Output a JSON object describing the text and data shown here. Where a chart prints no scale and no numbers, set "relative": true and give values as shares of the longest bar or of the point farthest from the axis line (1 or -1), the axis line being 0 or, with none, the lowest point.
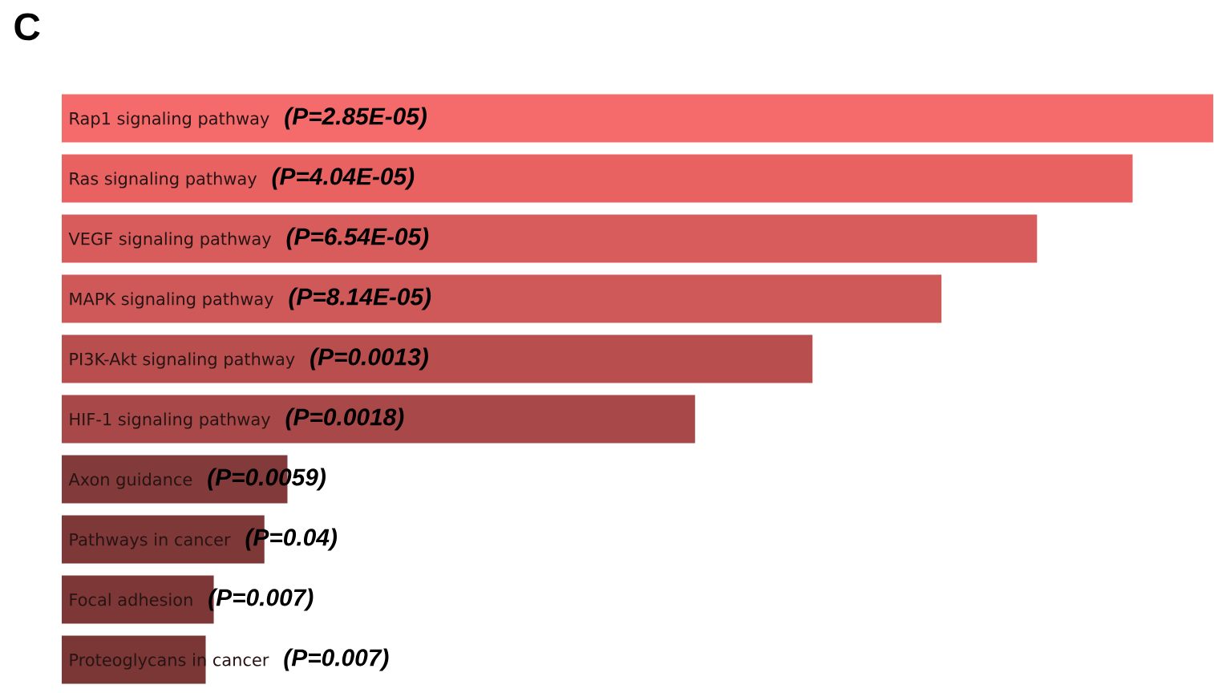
{
  "chart_data": {
    "type": "bar",
    "title": "C",
    "orientation": "horizontal",
    "relative": true,
    "categories": [
      "Rap1 signaling pathway",
      "Ras signaling pathway",
      "VEGF signaling pathway",
      "MAPK signaling pathway",
      "PI3K-Akt signaling pathway",
      "HIF-1 signaling pathway",
      "Axon guidance",
      "Pathways in cancer",
      "Focal adhesion",
      "Proteoglycans in cancer"
    ],
    "values": [
      1,
      0.93,
      0.847,
      0.764,
      0.652,
      0.55,
      0.196,
      0.176,
      0.132,
      0.125
    ],
    "colors": [
      "#f56a6a",
      "#e86262",
      "#d95c5c",
      "#cf5858",
      "#b94e4e",
      "#a84848",
      "#833a3a",
      "#7f3838",
      "#7d3737",
      "#7b3636"
    ],
    "annotations": [
      "(P=2.85E-05)",
      "(P=4.04E-05)",
      "(P=6.54E-05)",
      "(P=8.14E-05)",
      "(P=0.0013)",
      "(P=0.0018)",
      "(P=0.0059)",
      "(P=0.04)",
      "(P=0.007)",
      "(P=0.007)"
    ]
  }
}
